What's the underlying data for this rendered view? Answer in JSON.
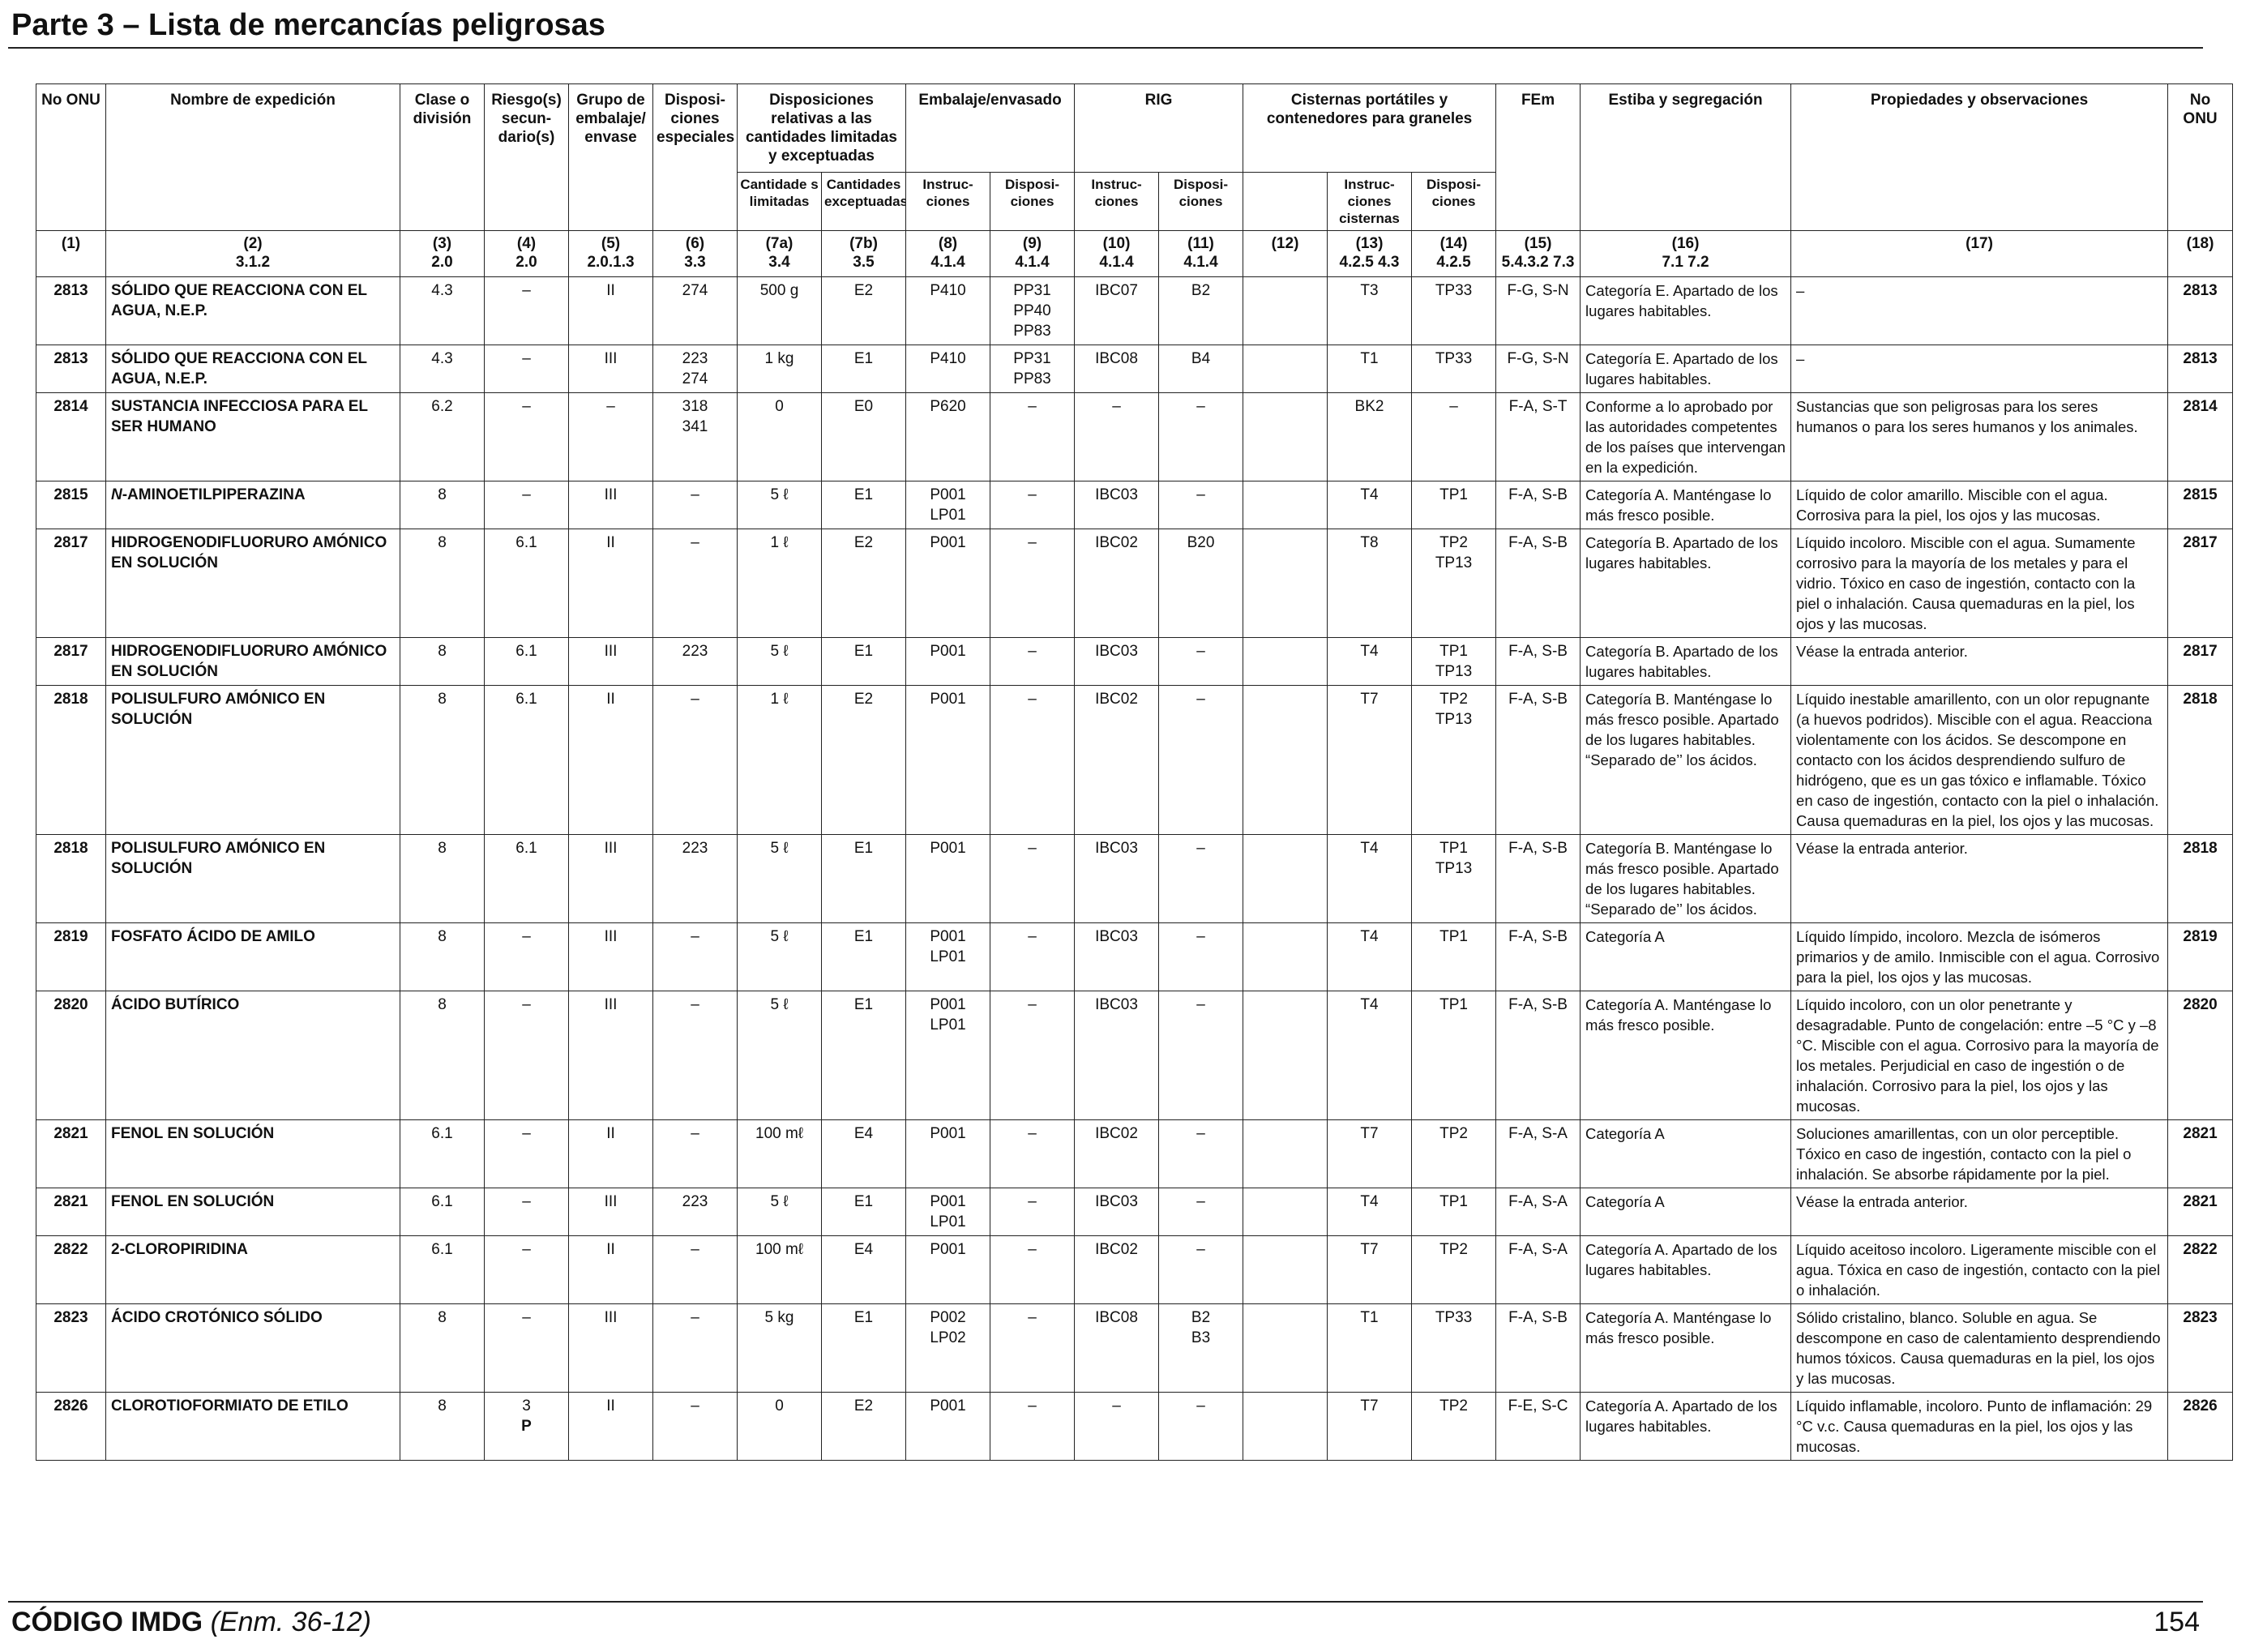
{
  "page": {
    "title": "Parte 3 – Lista de mercancías peligrosas",
    "footer_code": "CÓDIGO IMDG",
    "footer_amendment": "(Enm. 36-12)",
    "page_number": "154"
  },
  "header": {
    "un_no": "No ONU",
    "name": "Nombre de expedición",
    "class": "Clase o división",
    "sub_risk": "Riesgo(s) secun- dario(s)",
    "pack_group": "Grupo de embalaje/ envase",
    "special": "Disposi- ciones especiales",
    "limited_group": "Disposiciones relativas a las cantidades limitadas y exceptuadas",
    "packing_group_title": "Embalaje/envasado",
    "ibc_group": "RIG",
    "tank_group": "Cisternas portátiles y contenedores para graneles",
    "ems": "FEm",
    "stowage": "Estiba y segregación",
    "props": "Propiedades y observaciones",
    "un_no_right": "No ONU",
    "sub_limited": "Cantidade s limitadas",
    "sub_excepted": "Cantidades exceptuadas",
    "sub_pack_instr": "Instruc- ciones",
    "sub_pack_prov": "Disposi- ciones",
    "sub_ibc_instr": "Instruc- ciones",
    "sub_ibc_prov": "Disposi- ciones",
    "sub_tank_instr": "Instruc- ciones cisternas",
    "sub_tank_prov": "Disposi- ciones"
  },
  "column_numbers": [
    {
      "n": "(1)",
      "ref": ""
    },
    {
      "n": "(2)",
      "ref": "3.1.2"
    },
    {
      "n": "(3)",
      "ref": "2.0"
    },
    {
      "n": "(4)",
      "ref": "2.0"
    },
    {
      "n": "(5)",
      "ref": "2.0.1.3"
    },
    {
      "n": "(6)",
      "ref": "3.3"
    },
    {
      "n": "(7a)",
      "ref": "3.4"
    },
    {
      "n": "(7b)",
      "ref": "3.5"
    },
    {
      "n": "(8)",
      "ref": "4.1.4"
    },
    {
      "n": "(9)",
      "ref": "4.1.4"
    },
    {
      "n": "(10)",
      "ref": "4.1.4"
    },
    {
      "n": "(11)",
      "ref": "4.1.4"
    },
    {
      "n": "(12)",
      "ref": ""
    },
    {
      "n": "(13)",
      "ref": "4.2.5 4.3"
    },
    {
      "n": "(14)",
      "ref": "4.2.5"
    },
    {
      "n": "(15)",
      "ref": "5.4.3.2 7.3"
    },
    {
      "n": "(16)",
      "ref": "7.1 7.2"
    },
    {
      "n": "(17)",
      "ref": ""
    },
    {
      "n": "(18)",
      "ref": ""
    }
  ],
  "rows": [
    {
      "un": "2813",
      "name": "SÓLIDO QUE REACCIONA CON EL AGUA, N.E.P.",
      "cls": "4.3",
      "sub": "–",
      "pg": "II",
      "sp": "274",
      "lq": "500 g",
      "eq": "E2",
      "pi": "P410",
      "pp": "PP31 PP40 PP83",
      "ibc": "IBC07",
      "ibcp": "B2",
      "c12": "",
      "tank": "T3",
      "tankp": "TP33",
      "ems": "F-G, S-N",
      "stow": "Categoría E. Apartado de los lugares habitables.",
      "obs": "–",
      "un2": "2813"
    },
    {
      "un": "2813",
      "name": "SÓLIDO QUE REACCIONA CON EL AGUA, N.E.P.",
      "cls": "4.3",
      "sub": "–",
      "pg": "III",
      "sp": "223 274",
      "lq": "1 kg",
      "eq": "E1",
      "pi": "P410",
      "pp": "PP31 PP83",
      "ibc": "IBC08",
      "ibcp": "B4",
      "c12": "",
      "tank": "T1",
      "tankp": "TP33",
      "ems": "F-G, S-N",
      "stow": "Categoría E. Apartado de los lugares habitables.",
      "obs": "–",
      "un2": "2813"
    },
    {
      "un": "2814",
      "name": "SUSTANCIA INFECCIOSA PARA EL SER HUMANO",
      "cls": "6.2",
      "sub": "–",
      "pg": "–",
      "sp": "318 341",
      "lq": "0",
      "eq": "E0",
      "pi": "P620",
      "pp": "–",
      "ibc": "–",
      "ibcp": "–",
      "c12": "",
      "tank": "BK2",
      "tankp": "–",
      "ems": "F-A, S-T",
      "stow": "Conforme a lo aprobado por las autoridades competentes de los países que intervengan en la expedición.",
      "obs": "Sustancias que son peligrosas para los seres humanos o para los seres humanos y los animales.",
      "un2": "2814"
    },
    {
      "un": "2815",
      "name_italic": "N",
      "name": "-AMINOETILPIPERAZINA",
      "cls": "8",
      "sub": "–",
      "pg": "III",
      "sp": "–",
      "lq": "5 ℓ",
      "eq": "E1",
      "pi": "P001 LP01",
      "pp": "–",
      "ibc": "IBC03",
      "ibcp": "–",
      "c12": "",
      "tank": "T4",
      "tankp": "TP1",
      "ems": "F-A, S-B",
      "stow": "Categoría A. Manténgase lo más fresco posible.",
      "obs": "Líquido de color amarillo. Miscible con el agua. Corrosiva para la piel, los ojos y las mucosas.",
      "un2": "2815"
    },
    {
      "un": "2817",
      "name": "HIDROGENODIFLUORURO AMÓNICO EN SOLUCIÓN",
      "cls": "8",
      "sub": "6.1",
      "pg": "II",
      "sp": "–",
      "lq": "1 ℓ",
      "eq": "E2",
      "pi": "P001",
      "pp": "–",
      "ibc": "IBC02",
      "ibcp": "B20",
      "c12": "",
      "tank": "T8",
      "tankp": "TP2 TP13",
      "ems": "F-A, S-B",
      "stow": "Categoría B. Apartado de los lugares habitables.",
      "obs": "Líquido incoloro. Miscible con el agua. Sumamente corrosivo para la mayoría de los metales y para el vidrio. Tóxico en caso de ingestión, contacto con la piel o inhalación. Causa quemaduras en la piel, los ojos y las mucosas.",
      "un2": "2817"
    },
    {
      "un": "2817",
      "name": "HIDROGENODIFLUORURO AMÓNICO EN SOLUCIÓN",
      "cls": "8",
      "sub": "6.1",
      "pg": "III",
      "sp": "223",
      "lq": "5 ℓ",
      "eq": "E1",
      "pi": "P001",
      "pp": "–",
      "ibc": "IBC03",
      "ibcp": "–",
      "c12": "",
      "tank": "T4",
      "tankp": "TP1 TP13",
      "ems": "F-A, S-B",
      "stow": "Categoría B. Apartado de los lugares habitables.",
      "obs": "Véase la entrada anterior.",
      "un2": "2817"
    },
    {
      "un": "2818",
      "name": "POLISULFURO AMÓNICO EN SOLUCIÓN",
      "cls": "8",
      "sub": "6.1",
      "pg": "II",
      "sp": "–",
      "lq": "1 ℓ",
      "eq": "E2",
      "pi": "P001",
      "pp": "–",
      "ibc": "IBC02",
      "ibcp": "–",
      "c12": "",
      "tank": "T7",
      "tankp": "TP2 TP13",
      "ems": "F-A, S-B",
      "stow": "Categoría B. Manténgase lo más fresco posible. Apartado de los lugares habitables. “Separado de’’ los ácidos.",
      "obs": "Líquido inestable amarillento, con un olor repugnante (a huevos podridos). Miscible con el agua. Reacciona violentamente con los ácidos. Se descompone en contacto con los ácidos desprendiendo sulfuro de hidrógeno, que es un gas tóxico e inflamable. Tóxico en caso de ingestión, contacto con la piel o inhalación. Causa quemaduras en la piel, los ojos y las mucosas.",
      "un2": "2818"
    },
    {
      "un": "2818",
      "name": "POLISULFURO AMÓNICO EN SOLUCIÓN",
      "cls": "8",
      "sub": "6.1",
      "pg": "III",
      "sp": "223",
      "lq": "5 ℓ",
      "eq": "E1",
      "pi": "P001",
      "pp": "–",
      "ibc": "IBC03",
      "ibcp": "–",
      "c12": "",
      "tank": "T4",
      "tankp": "TP1 TP13",
      "ems": "F-A, S-B",
      "stow": "Categoría B. Manténgase lo más fresco posible. Apartado de los lugares habitables. “Separado de’’ los ácidos.",
      "obs": "Véase la entrada anterior.",
      "un2": "2818"
    },
    {
      "un": "2819",
      "name": "FOSFATO ÁCIDO DE AMILO",
      "cls": "8",
      "sub": "–",
      "pg": "III",
      "sp": "–",
      "lq": "5 ℓ",
      "eq": "E1",
      "pi": "P001 LP01",
      "pp": "–",
      "ibc": "IBC03",
      "ibcp": "–",
      "c12": "",
      "tank": "T4",
      "tankp": "TP1",
      "ems": "F-A, S-B",
      "stow": "Categoría A",
      "obs": "Líquido límpido, incoloro. Mezcla de isómeros primarios y de amilo. Inmiscible con el agua. Corrosivo para la piel, los ojos y las mucosas.",
      "un2": "2819"
    },
    {
      "un": "2820",
      "name": "ÁCIDO BUTÍRICO",
      "cls": "8",
      "sub": "–",
      "pg": "III",
      "sp": "–",
      "lq": "5 ℓ",
      "eq": "E1",
      "pi": "P001 LP01",
      "pp": "–",
      "ibc": "IBC03",
      "ibcp": "–",
      "c12": "",
      "tank": "T4",
      "tankp": "TP1",
      "ems": "F-A, S-B",
      "stow": "Categoría A. Manténgase lo más fresco posible.",
      "obs": "Líquido incoloro, con un olor penetrante y desagradable. Punto de congelación: entre –5 °C y –8 °C. Miscible con el agua. Corrosivo para la mayoría de los metales. Perjudicial en caso de ingestión o de inhalación. Corrosivo para la piel, los ojos y las mucosas.",
      "un2": "2820"
    },
    {
      "un": "2821",
      "name": "FENOL EN SOLUCIÓN",
      "cls": "6.1",
      "sub": "–",
      "pg": "II",
      "sp": "–",
      "lq": "100 mℓ",
      "eq": "E4",
      "pi": "P001",
      "pp": "–",
      "ibc": "IBC02",
      "ibcp": "–",
      "c12": "",
      "tank": "T7",
      "tankp": "TP2",
      "ems": "F-A, S-A",
      "stow": "Categoría A",
      "obs": "Soluciones amarillentas, con un olor perceptible. Tóxico en caso de ingestión, contacto con la piel o inhalación. Se absorbe rápidamente por la piel.",
      "un2": "2821"
    },
    {
      "un": "2821",
      "name": "FENOL EN SOLUCIÓN",
      "cls": "6.1",
      "sub": "–",
      "pg": "III",
      "sp": "223",
      "lq": "5 ℓ",
      "eq": "E1",
      "pi": "P001 LP01",
      "pp": "–",
      "ibc": "IBC03",
      "ibcp": "–",
      "c12": "",
      "tank": "T4",
      "tankp": "TP1",
      "ems": "F-A, S-A",
      "stow": "Categoría A",
      "obs": "Véase la entrada anterior.",
      "un2": "2821"
    },
    {
      "un": "2822",
      "name": "2-CLOROPIRIDINA",
      "cls": "6.1",
      "sub": "–",
      "pg": "II",
      "sp": "–",
      "lq": "100 mℓ",
      "eq": "E4",
      "pi": "P001",
      "pp": "–",
      "ibc": "IBC02",
      "ibcp": "–",
      "c12": "",
      "tank": "T7",
      "tankp": "TP2",
      "ems": "F-A, S-A",
      "stow": "Categoría A. Apartado de los lugares habitables.",
      "obs": "Líquido aceitoso incoloro. Ligeramente miscible con el agua. Tóxica en caso de ingestión, contacto con la piel o inhalación.",
      "un2": "2822"
    },
    {
      "un": "2823",
      "name": "ÁCIDO CROTÓNICO SÓLIDO",
      "cls": "8",
      "sub": "–",
      "pg": "III",
      "sp": "–",
      "lq": "5 kg",
      "eq": "E1",
      "pi": "P002 LP02",
      "pp": "–",
      "ibc": "IBC08",
      "ibcp": "B2 B3",
      "c12": "",
      "tank": "T1",
      "tankp": "TP33",
      "ems": "F-A, S-B",
      "stow": "Categoría A. Manténgase lo más fresco posible.",
      "obs": "Sólido cristalino, blanco. Soluble en agua. Se descompone en caso de calentamiento desprendiendo humos tóxicos. Causa quemaduras en la piel, los ojos y las mucosas.",
      "un2": "2823"
    },
    {
      "un": "2826",
      "name": "CLOROTIOFORMIATO DE ETILO",
      "cls": "8",
      "sub": "3",
      "sub_b": "P",
      "pg": "II",
      "sp": "–",
      "lq": "0",
      "eq": "E2",
      "pi": "P001",
      "pp": "–",
      "ibc": "–",
      "ibcp": "–",
      "c12": "",
      "tank": "T7",
      "tankp": "TP2",
      "ems": "F-E, S-C",
      "stow": "Categoría A. Apartado de los lugares habitables.",
      "obs": "Líquido inflamable, incoloro. Punto de inflamación: 29 °C v.c. Causa quemaduras en la piel, los ojos y las mucosas.",
      "un2": "2826"
    }
  ]
}
